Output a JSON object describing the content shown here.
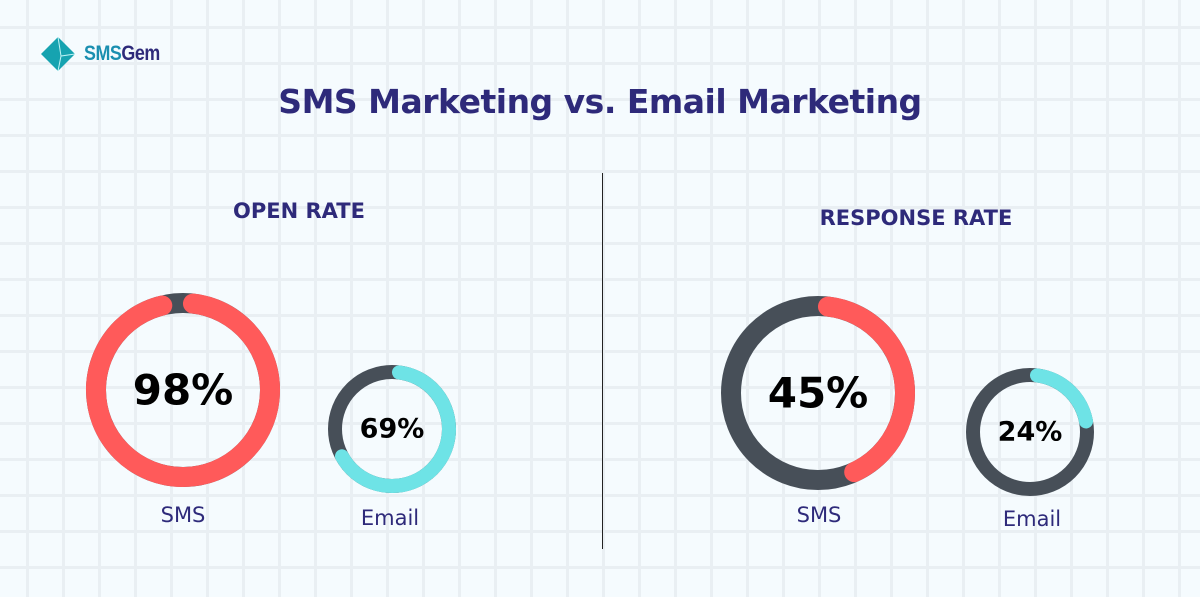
{
  "brand": {
    "name_part1": "SMS",
    "name_part2": "Gem",
    "icon": "gem-icon"
  },
  "title": "SMS Marketing vs. Email Marketing",
  "colors": {
    "sms": "#ff5a5a",
    "email": "#6ee3e6",
    "track": "#474f58",
    "text": "#2e2a7a"
  },
  "chart_data": [
    {
      "type": "donut",
      "title": "OPEN RATE",
      "series": [
        {
          "name": "SMS",
          "value": 98,
          "label": "98%"
        },
        {
          "name": "Email",
          "value": 69,
          "label": "69%"
        }
      ]
    },
    {
      "type": "donut",
      "title": "RESPONSE RATE",
      "series": [
        {
          "name": "SMS",
          "value": 45,
          "label": "45%"
        },
        {
          "name": "Email",
          "value": 24,
          "label": "24%"
        }
      ]
    }
  ]
}
